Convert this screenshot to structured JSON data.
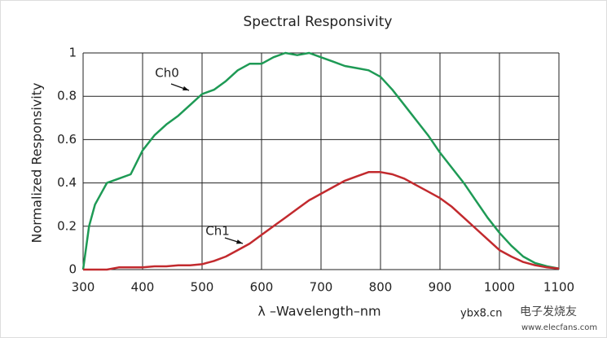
{
  "chart_data": {
    "type": "line",
    "title": "Spectral Responsivity",
    "xlabel": "λ –Wavelength–nm",
    "ylabel": "Normalized Responsivity",
    "x": [
      300,
      310,
      320,
      340,
      360,
      380,
      400,
      420,
      440,
      460,
      480,
      500,
      520,
      540,
      560,
      580,
      600,
      620,
      640,
      660,
      680,
      700,
      720,
      740,
      760,
      780,
      800,
      820,
      840,
      860,
      880,
      900,
      920,
      940,
      960,
      980,
      1000,
      1020,
      1040,
      1060,
      1080,
      1100
    ],
    "series": [
      {
        "name": "Ch0",
        "color": "#1e9a55",
        "values": [
          0,
          0.2,
          0.3,
          0.4,
          0.42,
          0.44,
          0.55,
          0.62,
          0.67,
          0.71,
          0.76,
          0.81,
          0.83,
          0.87,
          0.92,
          0.95,
          0.95,
          0.98,
          1.0,
          0.99,
          1.0,
          0.98,
          0.96,
          0.94,
          0.93,
          0.92,
          0.89,
          0.83,
          0.76,
          0.69,
          0.62,
          0.54,
          0.47,
          0.4,
          0.32,
          0.24,
          0.17,
          0.11,
          0.06,
          0.03,
          0.015,
          0.005
        ]
      },
      {
        "name": "Ch1",
        "color": "#c22a2e",
        "values": [
          0,
          0,
          0,
          0,
          0.01,
          0.01,
          0.01,
          0.015,
          0.015,
          0.02,
          0.02,
          0.025,
          0.04,
          0.06,
          0.09,
          0.12,
          0.16,
          0.2,
          0.24,
          0.28,
          0.32,
          0.35,
          0.38,
          0.41,
          0.43,
          0.45,
          0.45,
          0.44,
          0.42,
          0.39,
          0.36,
          0.33,
          0.29,
          0.24,
          0.19,
          0.14,
          0.09,
          0.06,
          0.035,
          0.02,
          0.01,
          0.005
        ]
      }
    ],
    "xlim": [
      300,
      1100
    ],
    "xticks": [
      300,
      400,
      500,
      600,
      700,
      800,
      900,
      1000,
      1100
    ],
    "ylim": [
      0,
      1
    ],
    "yticks": [
      0,
      0.2,
      0.4,
      0.6,
      0.8,
      1
    ],
    "grid": true,
    "watermark": [
      "ybx8.cn",
      "电子发烧友",
      "www.elecfans.com"
    ]
  }
}
